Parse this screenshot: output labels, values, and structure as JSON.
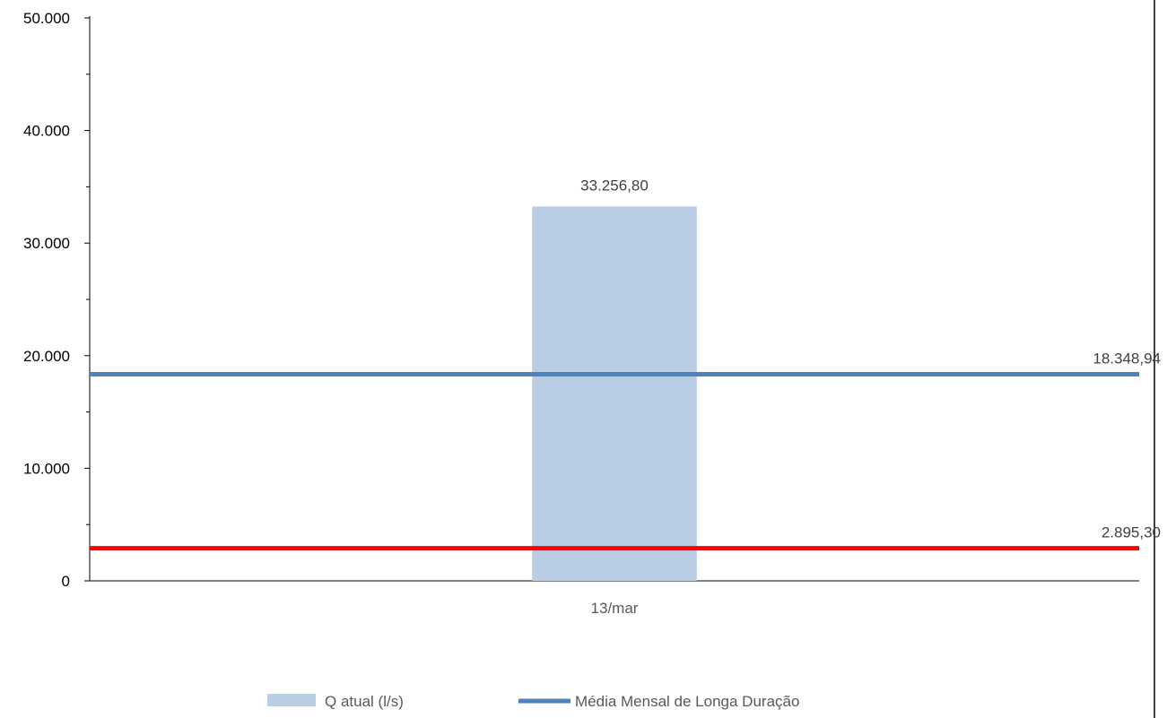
{
  "chart_data": {
    "type": "bar",
    "categories": [
      "13/mar"
    ],
    "ylim": [
      0,
      50000
    ],
    "yticks": [
      0,
      10000,
      20000,
      30000,
      40000,
      50000
    ],
    "ytick_labels": [
      "0",
      "10.000",
      "20.000",
      "30.000",
      "40.000",
      "50.000"
    ],
    "grid": false,
    "legend_position": "bottom",
    "series": [
      {
        "name": "Q atual (l/s)",
        "kind": "bar",
        "values": [
          33256.8
        ],
        "label": "33.256,80",
        "color": "#b9cde5"
      },
      {
        "name": "Média Mensal de Longa Duração",
        "kind": "hline",
        "value": 18348.94,
        "label": "18.348,94",
        "color": "#4f81bd"
      },
      {
        "kind": "hline",
        "value": 2895.3,
        "label": "2.895,30",
        "color": "#ff0000"
      }
    ]
  }
}
